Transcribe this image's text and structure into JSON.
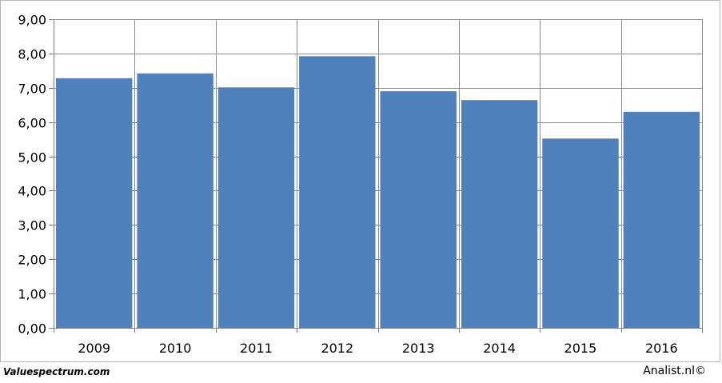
{
  "chart_data": {
    "type": "bar",
    "title": "",
    "xlabel": "",
    "ylabel": "",
    "categories": [
      "2009",
      "2010",
      "2011",
      "2012",
      "2013",
      "2014",
      "2015",
      "2016"
    ],
    "values": [
      7.28,
      7.42,
      7.01,
      7.92,
      6.9,
      6.64,
      5.52,
      6.3
    ],
    "ylim": [
      0,
      9
    ],
    "yticks": [
      "0,00",
      "1,00",
      "2,00",
      "3,00",
      "4,00",
      "5,00",
      "6,00",
      "7,00",
      "8,00",
      "9,00"
    ],
    "grid": true,
    "legend": "none",
    "colors": {
      "bar": "#4f81bd",
      "grid": "#8c8c8c",
      "axis": "#7f7f7f"
    }
  },
  "footer": {
    "source": "Valuespectrum.com",
    "credit": "Analist.nl©"
  }
}
